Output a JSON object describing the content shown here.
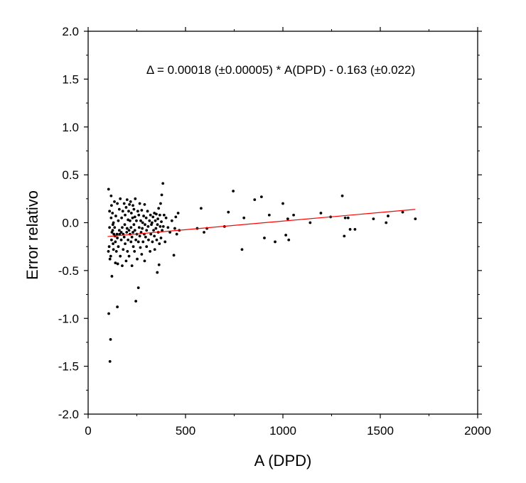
{
  "chart_data": {
    "type": "scatter",
    "xlabel": "A (DPD)",
    "ylabel": "Error relativo",
    "xlim": [
      0,
      2000
    ],
    "ylim": [
      -2.0,
      2.0
    ],
    "xticks": [
      0,
      500,
      1000,
      1500,
      2000
    ],
    "xtick_labels": [
      "0",
      "500",
      "1000",
      "1500",
      "2000"
    ],
    "yticks": [
      -2.0,
      -1.5,
      -1.0,
      -0.5,
      0.0,
      0.5,
      1.0,
      1.5,
      2.0
    ],
    "ytick_labels": [
      "-2.0",
      "-1.5",
      "-1.0",
      "-0.5",
      "0.0",
      "0.5",
      "1.0",
      "1.5",
      "2.0"
    ],
    "grid": false,
    "legend": "none",
    "annotation": "Δ = 0.00018 (±0.00005) * A(DPD) - 0.163 (±0.022)",
    "colors": {
      "points": "#000000",
      "fit_line": "#ff0000",
      "axes": "#000000"
    },
    "fit_line": {
      "x": [
        100,
        1680
      ],
      "y": [
        -0.145,
        0.139
      ]
    },
    "points": [
      [
        105,
        0.35
      ],
      [
        110,
        0.12
      ],
      [
        110,
        -0.05
      ],
      [
        108,
        -0.25
      ],
      [
        104,
        -0.3
      ],
      [
        112,
        -0.38
      ],
      [
        106,
        -0.95
      ],
      [
        115,
        -1.22
      ],
      [
        112,
        -1.45
      ],
      [
        118,
        0.28
      ],
      [
        120,
        0.18
      ],
      [
        118,
        0.05
      ],
      [
        122,
        -0.1
      ],
      [
        120,
        -0.18
      ],
      [
        116,
        -0.35
      ],
      [
        122,
        -0.56
      ],
      [
        125,
        0.1
      ],
      [
        127,
        -0.02
      ],
      [
        126,
        -0.08
      ],
      [
        128,
        -0.22
      ],
      [
        130,
        -0.28
      ],
      [
        130,
        0.0
      ],
      [
        132,
        -0.12
      ],
      [
        135,
        0.22
      ],
      [
        136,
        -0.05
      ],
      [
        138,
        -0.14
      ],
      [
        140,
        -0.2
      ],
      [
        140,
        -0.42
      ],
      [
        142,
        0.07
      ],
      [
        145,
        -0.3
      ],
      [
        148,
        -0.12
      ],
      [
        150,
        -0.16
      ],
      [
        150,
        0.2
      ],
      [
        150,
        -0.88
      ],
      [
        152,
        -0.43
      ],
      [
        155,
        0.02
      ],
      [
        155,
        -0.25
      ],
      [
        160,
        -0.08
      ],
      [
        160,
        0.14
      ],
      [
        162,
        -0.12
      ],
      [
        165,
        -0.35
      ],
      [
        165,
        0.25
      ],
      [
        170,
        -0.1
      ],
      [
        170,
        -0.18
      ],
      [
        172,
        0.05
      ],
      [
        175,
        -0.05
      ],
      [
        175,
        -0.45
      ],
      [
        178,
        0.12
      ],
      [
        180,
        -0.12
      ],
      [
        180,
        -0.28
      ],
      [
        185,
        0.2
      ],
      [
        185,
        -0.15
      ],
      [
        188,
        -0.02
      ],
      [
        190,
        0.08
      ],
      [
        190,
        -0.22
      ],
      [
        195,
        0.16
      ],
      [
        195,
        -0.4
      ],
      [
        198,
        -0.1
      ],
      [
        200,
        0.24
      ],
      [
        200,
        -0.06
      ],
      [
        202,
        -0.3
      ],
      [
        205,
        0.03
      ],
      [
        205,
        -0.18
      ],
      [
        208,
        0.12
      ],
      [
        210,
        -0.08
      ],
      [
        210,
        -0.35
      ],
      [
        212,
        0.19
      ],
      [
        215,
        -0.12
      ],
      [
        215,
        0.02
      ],
      [
        218,
        0.22
      ],
      [
        220,
        -0.2
      ],
      [
        220,
        -0.05
      ],
      [
        222,
        0.1
      ],
      [
        225,
        -0.45
      ],
      [
        225,
        -0.15
      ],
      [
        228,
        0.05
      ],
      [
        230,
        -0.1
      ],
      [
        230,
        0.18
      ],
      [
        232,
        -0.25
      ],
      [
        235,
        0.14
      ],
      [
        235,
        -0.02
      ],
      [
        238,
        -0.3
      ],
      [
        240,
        0.06
      ],
      [
        240,
        -0.08
      ],
      [
        242,
        0.25
      ],
      [
        245,
        -0.82
      ],
      [
        245,
        -0.18
      ],
      [
        248,
        0.02
      ],
      [
        250,
        -0.12
      ],
      [
        252,
        -0.38
      ],
      [
        255,
        0.12
      ],
      [
        258,
        -0.68
      ],
      [
        258,
        -0.2
      ],
      [
        260,
        0.08
      ],
      [
        262,
        -0.05
      ],
      [
        265,
        -0.14
      ],
      [
        265,
        0.2
      ],
      [
        268,
        -0.26
      ],
      [
        270,
        0.02
      ],
      [
        272,
        -0.1
      ],
      [
        275,
        -0.33
      ],
      [
        275,
        0.13
      ],
      [
        278,
        -0.06
      ],
      [
        280,
        0.0
      ],
      [
        282,
        -0.2
      ],
      [
        285,
        0.07
      ],
      [
        288,
        -0.12
      ],
      [
        290,
        -0.4
      ],
      [
        290,
        0.19
      ],
      [
        292,
        -0.02
      ],
      [
        295,
        -0.15
      ],
      [
        298,
        0.05
      ],
      [
        300,
        -0.25
      ],
      [
        300,
        -0.08
      ],
      [
        305,
        0.12
      ],
      [
        308,
        -0.04
      ],
      [
        310,
        -0.18
      ],
      [
        315,
        0.02
      ],
      [
        318,
        -0.3
      ],
      [
        320,
        0.08
      ],
      [
        322,
        -0.12
      ],
      [
        325,
        -0.02
      ],
      [
        328,
        0.0
      ],
      [
        330,
        -0.2
      ],
      [
        333,
        0.06
      ],
      [
        336,
        -0.08
      ],
      [
        340,
        0.1
      ],
      [
        340,
        -0.14
      ],
      [
        342,
        -0.28
      ],
      [
        345,
        0.02
      ],
      [
        348,
        -0.06
      ],
      [
        350,
        0.09
      ],
      [
        352,
        -0.18
      ],
      [
        355,
        -0.52
      ],
      [
        356,
        -0.02
      ],
      [
        358,
        0.04
      ],
      [
        360,
        -0.1
      ],
      [
        362,
        0.15
      ],
      [
        364,
        -0.44
      ],
      [
        366,
        -0.22
      ],
      [
        368,
        0.08
      ],
      [
        370,
        -0.04
      ],
      [
        372,
        0.2
      ],
      [
        374,
        -0.16
      ],
      [
        376,
        0.01
      ],
      [
        378,
        0.29
      ],
      [
        380,
        -0.08
      ],
      [
        384,
        0.41
      ],
      [
        386,
        -0.04
      ],
      [
        390,
        0.08
      ],
      [
        395,
        -0.2
      ],
      [
        400,
        0.05
      ],
      [
        410,
        -0.05
      ],
      [
        420,
        -0.1
      ],
      [
        430,
        0.02
      ],
      [
        440,
        -0.34
      ],
      [
        445,
        -0.06
      ],
      [
        450,
        0.06
      ],
      [
        455,
        -0.12
      ],
      [
        462,
        0.1
      ],
      [
        468,
        -0.08
      ],
      [
        560,
        -0.06
      ],
      [
        580,
        0.15
      ],
      [
        595,
        -0.1
      ],
      [
        610,
        -0.06
      ],
      [
        700,
        -0.04
      ],
      [
        720,
        0.11
      ],
      [
        745,
        0.33
      ],
      [
        790,
        -0.28
      ],
      [
        800,
        0.05
      ],
      [
        855,
        0.24
      ],
      [
        890,
        0.27
      ],
      [
        905,
        -0.16
      ],
      [
        930,
        0.08
      ],
      [
        960,
        -0.2
      ],
      [
        1000,
        0.2
      ],
      [
        1015,
        -0.13
      ],
      [
        1025,
        0.04
      ],
      [
        1030,
        -0.18
      ],
      [
        1055,
        0.08
      ],
      [
        1140,
        0.0
      ],
      [
        1195,
        0.1
      ],
      [
        1245,
        0.06
      ],
      [
        1305,
        0.28
      ],
      [
        1315,
        -0.14
      ],
      [
        1320,
        0.05
      ],
      [
        1335,
        0.05
      ],
      [
        1345,
        -0.07
      ],
      [
        1370,
        -0.07
      ],
      [
        1465,
        0.04
      ],
      [
        1530,
        0.0
      ],
      [
        1540,
        0.07
      ],
      [
        1615,
        0.11
      ],
      [
        1680,
        0.04
      ]
    ]
  }
}
